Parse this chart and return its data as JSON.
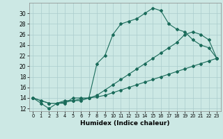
{
  "title": "",
  "xlabel": "Humidex (Indice chaleur)",
  "bg_color": "#cce8e4",
  "grid_color": "#aacccc",
  "line_color": "#1a6b5a",
  "line1_x": [
    0,
    1,
    2,
    3,
    4,
    5,
    6,
    7,
    8,
    9,
    10,
    11,
    12,
    13,
    14,
    15,
    16,
    17,
    18,
    19,
    20,
    21,
    22,
    23
  ],
  "line1_y": [
    14,
    13,
    12,
    13,
    13,
    14,
    14,
    14,
    20.5,
    22,
    26,
    28,
    28.5,
    29,
    30,
    31,
    30.5,
    28,
    27,
    26.5,
    25,
    24,
    23.5,
    21.5
  ],
  "line2_x": [
    0,
    1,
    2,
    3,
    4,
    5,
    6,
    7,
    8,
    9,
    10,
    11,
    12,
    13,
    14,
    15,
    16,
    17,
    18,
    19,
    20,
    21,
    22,
    23
  ],
  "line2_y": [
    14,
    13.5,
    13,
    13,
    13.5,
    13.5,
    13.5,
    14,
    14.5,
    15.5,
    16.5,
    17.5,
    18.5,
    19.5,
    20.5,
    21.5,
    22.5,
    23.5,
    24.5,
    26,
    26.5,
    26,
    25,
    21.5
  ],
  "line3_x": [
    0,
    1,
    2,
    3,
    4,
    5,
    6,
    7,
    8,
    9,
    10,
    11,
    12,
    13,
    14,
    15,
    16,
    17,
    18,
    19,
    20,
    21,
    22,
    23
  ],
  "line3_y": [
    14,
    13.5,
    13,
    13,
    13.2,
    13.5,
    13.8,
    14,
    14.2,
    14.5,
    15,
    15.5,
    16,
    16.5,
    17,
    17.5,
    18,
    18.5,
    19,
    19.5,
    20,
    20.5,
    21,
    21.5
  ],
  "xlim": [
    -0.5,
    23.5
  ],
  "ylim": [
    11.5,
    32
  ],
  "yticks": [
    12,
    14,
    16,
    18,
    20,
    22,
    24,
    26,
    28,
    30
  ],
  "xticks": [
    0,
    1,
    2,
    3,
    4,
    5,
    6,
    7,
    8,
    9,
    10,
    11,
    12,
    13,
    14,
    15,
    16,
    17,
    18,
    19,
    20,
    21,
    22,
    23
  ]
}
